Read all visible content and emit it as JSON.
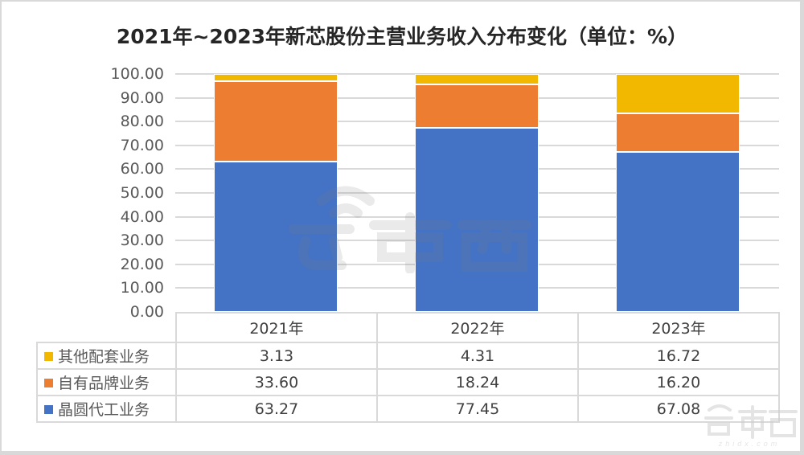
{
  "title": "2021年~2023年新芯股份主营业务收入分布变化（单位：%）",
  "colors": {
    "other": "#F2B800",
    "own_brand": "#ED7D31",
    "foundry": "#4472C4",
    "grid": "#D9D9D9",
    "text": "#595959"
  },
  "y_axis": {
    "ticks": [
      "100.00",
      "90.00",
      "80.00",
      "70.00",
      "60.00",
      "50.00",
      "40.00",
      "30.00",
      "20.00",
      "10.00",
      "0.00"
    ]
  },
  "table": {
    "headers": [
      "2021年",
      "2022年",
      "2023年"
    ],
    "rows": [
      {
        "label": "其他配套业务",
        "values": [
          "3.13",
          "4.31",
          "16.72"
        ]
      },
      {
        "label": "自有品牌业务",
        "values": [
          "33.60",
          "18.24",
          "16.20"
        ]
      },
      {
        "label": "晶圆代工业务",
        "values": [
          "63.27",
          "77.45",
          "67.08"
        ]
      }
    ]
  },
  "watermark": {
    "center": "芯東西",
    "corner": "芯東西",
    "corner_url": "zhidx.com"
  },
  "chart_data": {
    "type": "bar",
    "stacked": true,
    "title": "2021年~2023年新芯股份主营业务收入分布变化（单位：%）",
    "categories": [
      "2021年",
      "2022年",
      "2023年"
    ],
    "series": [
      {
        "name": "晶圆代工业务",
        "color": "#4472C4",
        "values": [
          63.27,
          77.45,
          67.08
        ]
      },
      {
        "name": "自有品牌业务",
        "color": "#ED7D31",
        "values": [
          33.6,
          18.24,
          16.2
        ]
      },
      {
        "name": "其他配套业务",
        "color": "#F2B800",
        "values": [
          3.13,
          4.31,
          16.72
        ]
      }
    ],
    "xlabel": "",
    "ylabel": "",
    "ylim": [
      0,
      100
    ],
    "yticks": [
      0,
      10,
      20,
      30,
      40,
      50,
      60,
      70,
      80,
      90,
      100
    ],
    "grid": true,
    "legend_position": "data-table-left"
  }
}
